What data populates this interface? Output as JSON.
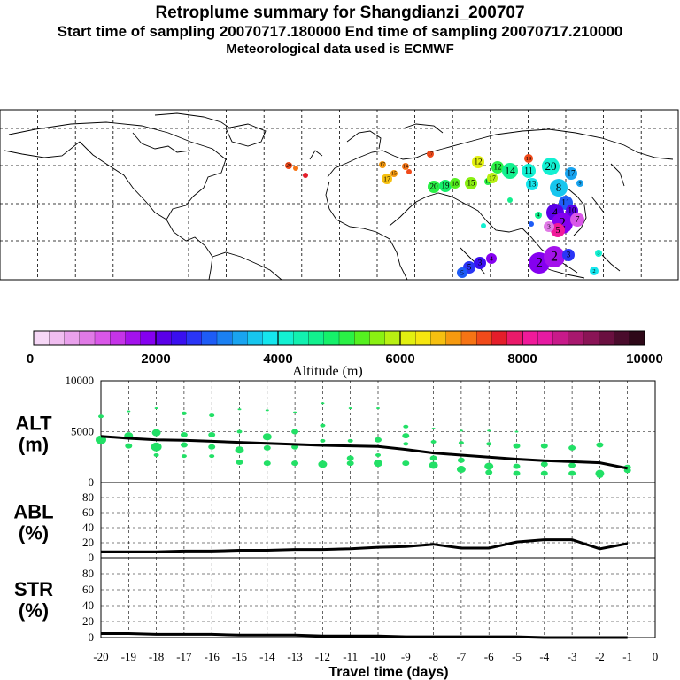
{
  "header": {
    "title": "Retroplume summary for Shangdianzi_200707",
    "sampling": "Start time of sampling 20070717.180000     End time of sampling 20070717.210000",
    "met": "Meteorological data used is ECMWF"
  },
  "colorbar": {
    "label": "Altitude (m)",
    "ticks": [
      "0",
      "2000",
      "4000",
      "6000",
      "8000",
      "10000"
    ],
    "colors": [
      "#f6d7f6",
      "#f0bdf0",
      "#e9a1ec",
      "#e07ae6",
      "#d957e8",
      "#c534e8",
      "#a312ec",
      "#8500f0",
      "#5a00e8",
      "#3a0ff0",
      "#2a35f6",
      "#1e5cf6",
      "#1b80f2",
      "#19a4f0",
      "#17c6ee",
      "#15e6ee",
      "#13f0d2",
      "#12f0b0",
      "#12f08e",
      "#15f06a",
      "#2af046",
      "#55f020",
      "#8af012",
      "#b8f012",
      "#e2f010",
      "#f6e610",
      "#f6c010",
      "#f69a10",
      "#f67414",
      "#f04a1a",
      "#e41e2a",
      "#ea1a6a",
      "#f01a9a",
      "#e61aa2",
      "#c81a8a",
      "#a8186e",
      "#8a1456",
      "#6a1040",
      "#4a0c2c",
      "#2e0818"
    ]
  },
  "map": {
    "plume_numbers": [
      "1",
      "2",
      "3",
      "4",
      "5",
      "6",
      "7",
      "8",
      "9",
      "10",
      "11",
      "12",
      "13",
      "14",
      "15",
      "16",
      "17",
      "18",
      "19",
      "20"
    ]
  },
  "chart_data": [
    {
      "name": "ALT",
      "type": "line+scatter",
      "ylabel": "ALT\n(m)",
      "label_line1": "ALT",
      "label_line2": "(m)",
      "ylim": [
        0,
        10000
      ],
      "yticks": [
        "0",
        "5000",
        "10000"
      ],
      "x": [
        -20,
        -19,
        -18,
        -17,
        -16,
        -15,
        -14,
        -13,
        -12,
        -11,
        -10,
        -9,
        -8,
        -7,
        -6,
        -5,
        -4,
        -3,
        -2,
        -1
      ],
      "line": [
        4550,
        4350,
        4200,
        4150,
        4050,
        3950,
        3850,
        3750,
        3650,
        3600,
        3550,
        3250,
        2900,
        2700,
        2500,
        2300,
        2150,
        2050,
        1950,
        1400
      ],
      "scatter_color": "#22e066",
      "scatter": [
        [
          -20,
          6500,
          2
        ],
        [
          -20,
          4200,
          5
        ],
        [
          -19,
          7000,
          1
        ],
        [
          -19,
          4600,
          4
        ],
        [
          -19,
          3600,
          3
        ],
        [
          -18,
          7300,
          1
        ],
        [
          -18,
          4900,
          4
        ],
        [
          -18,
          3500,
          5
        ],
        [
          -18,
          2700,
          2
        ],
        [
          -17,
          6800,
          2
        ],
        [
          -17,
          4700,
          3
        ],
        [
          -17,
          3700,
          3
        ],
        [
          -17,
          2600,
          2
        ],
        [
          -16,
          6600,
          2
        ],
        [
          -16,
          4700,
          3
        ],
        [
          -16,
          3500,
          3
        ],
        [
          -16,
          2600,
          2
        ],
        [
          -15,
          7200,
          1
        ],
        [
          -15,
          5000,
          2
        ],
        [
          -15,
          3200,
          4
        ],
        [
          -15,
          2000,
          3
        ],
        [
          -14,
          7100,
          1
        ],
        [
          -14,
          4500,
          4
        ],
        [
          -14,
          3400,
          3
        ],
        [
          -14,
          1900,
          3
        ],
        [
          -13,
          6900,
          1
        ],
        [
          -13,
          5000,
          3
        ],
        [
          -13,
          3500,
          3
        ],
        [
          -13,
          1900,
          3
        ],
        [
          -12,
          7800,
          1
        ],
        [
          -12,
          5600,
          2
        ],
        [
          -12,
          4100,
          2
        ],
        [
          -12,
          1800,
          4
        ],
        [
          -11,
          7300,
          1
        ],
        [
          -11,
          4100,
          2
        ],
        [
          -11,
          2400,
          3
        ],
        [
          -11,
          1900,
          3
        ],
        [
          -10,
          7300,
          1
        ],
        [
          -10,
          4200,
          3
        ],
        [
          -10,
          2700,
          2
        ],
        [
          -10,
          1900,
          4
        ],
        [
          -9,
          5500,
          2
        ],
        [
          -9,
          4600,
          3
        ],
        [
          -9,
          3800,
          2
        ],
        [
          -9,
          1900,
          3
        ],
        [
          -8,
          5300,
          1
        ],
        [
          -8,
          4000,
          2
        ],
        [
          -8,
          2400,
          3
        ],
        [
          -8,
          1700,
          4
        ],
        [
          -7,
          5100,
          1
        ],
        [
          -7,
          3900,
          2
        ],
        [
          -7,
          2200,
          3
        ],
        [
          -7,
          1300,
          4
        ],
        [
          -6,
          5100,
          1
        ],
        [
          -6,
          3800,
          2
        ],
        [
          -6,
          1600,
          4
        ],
        [
          -6,
          1000,
          3
        ],
        [
          -5,
          5000,
          1
        ],
        [
          -5,
          3600,
          3
        ],
        [
          -5,
          1600,
          3
        ],
        [
          -5,
          900,
          3
        ],
        [
          -4,
          3600,
          3
        ],
        [
          -4,
          1800,
          3
        ],
        [
          -4,
          900,
          3
        ],
        [
          -3,
          3400,
          3
        ],
        [
          -3,
          1700,
          3
        ],
        [
          -3,
          900,
          3
        ],
        [
          -2,
          3700,
          3
        ],
        [
          -2,
          900,
          4
        ],
        [
          -2,
          700,
          3
        ],
        [
          -1,
          1500,
          3
        ],
        [
          -1,
          1200,
          3
        ]
      ]
    },
    {
      "name": "ABL",
      "type": "line",
      "label_line1": "ABL",
      "label_line2": "(%)",
      "ylim": [
        0,
        100
      ],
      "yticks": [
        "0",
        "20",
        "40",
        "60",
        "80"
      ],
      "x": [
        -20,
        -19,
        -18,
        -17,
        -16,
        -15,
        -14,
        -13,
        -12,
        -11,
        -10,
        -9,
        -8,
        -7,
        -6,
        -5,
        -4,
        -3,
        -2,
        -1
      ],
      "values": [
        8,
        8,
        8,
        9,
        9,
        10,
        10,
        11,
        11,
        12,
        14,
        15,
        18,
        13,
        13,
        21,
        24,
        24,
        12,
        19
      ]
    },
    {
      "name": "STR",
      "type": "line",
      "label_line1": "STR",
      "label_line2": "(%)",
      "ylim": [
        0,
        100
      ],
      "yticks": [
        "0",
        "20",
        "40",
        "60",
        "80"
      ],
      "x": [
        -20,
        -19,
        -18,
        -17,
        -16,
        -15,
        -14,
        -13,
        -12,
        -11,
        -10,
        -9,
        -8,
        -7,
        -6,
        -5,
        -4,
        -3,
        -2,
        -1
      ],
      "values": [
        5,
        5,
        4,
        4,
        4,
        3,
        3,
        3,
        2,
        2,
        2,
        1,
        1,
        1,
        1,
        1,
        0,
        0,
        0,
        0
      ],
      "xticks": [
        "-20",
        "-19",
        "-18",
        "-17",
        "-16",
        "-15",
        "-14",
        "-13",
        "-12",
        "-11",
        "-10",
        "-9",
        "-8",
        "-7",
        "-6",
        "-5",
        "-4",
        "-3",
        "-2",
        "-1",
        "0"
      ],
      "xlabel": "Travel time (days)"
    }
  ]
}
